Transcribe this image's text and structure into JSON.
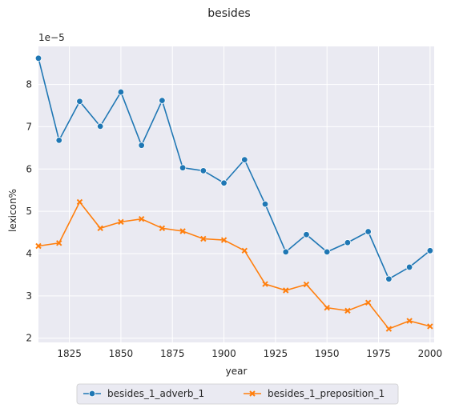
{
  "chart_data": {
    "type": "line",
    "title": "besides",
    "xlabel": "year",
    "ylabel": "lexicon%",
    "y_scale_label": "1e−5",
    "xlim": [
      1810,
      2002
    ],
    "ylim": [
      1.9,
      8.9
    ],
    "x_ticks": [
      1825,
      1850,
      1875,
      1900,
      1925,
      1950,
      1975,
      2000
    ],
    "y_ticks": [
      2,
      3,
      4,
      5,
      6,
      7,
      8
    ],
    "grid": true,
    "legend_placement": "bottom-center",
    "x": [
      1810,
      1820,
      1830,
      1840,
      1850,
      1860,
      1870,
      1880,
      1890,
      1900,
      1910,
      1920,
      1930,
      1940,
      1950,
      1960,
      1970,
      1980,
      1990,
      2000
    ],
    "series": [
      {
        "name": "besides_1_adverb_1",
        "color": "#1f77b4",
        "marker": "circle",
        "values": [
          8.62,
          6.68,
          7.6,
          7.01,
          7.82,
          6.56,
          7.62,
          6.03,
          5.96,
          5.67,
          6.22,
          5.17,
          4.04,
          4.45,
          4.04,
          4.26,
          4.52,
          3.4,
          3.68,
          4.07
        ]
      },
      {
        "name": "besides_1_preposition_1",
        "color": "#ff7f0e",
        "marker": "x",
        "values": [
          4.18,
          4.25,
          5.22,
          4.6,
          4.75,
          4.82,
          4.6,
          4.53,
          4.35,
          4.32,
          4.07,
          3.28,
          3.13,
          3.27,
          2.72,
          2.65,
          2.84,
          2.22,
          2.41,
          2.28
        ]
      }
    ]
  }
}
